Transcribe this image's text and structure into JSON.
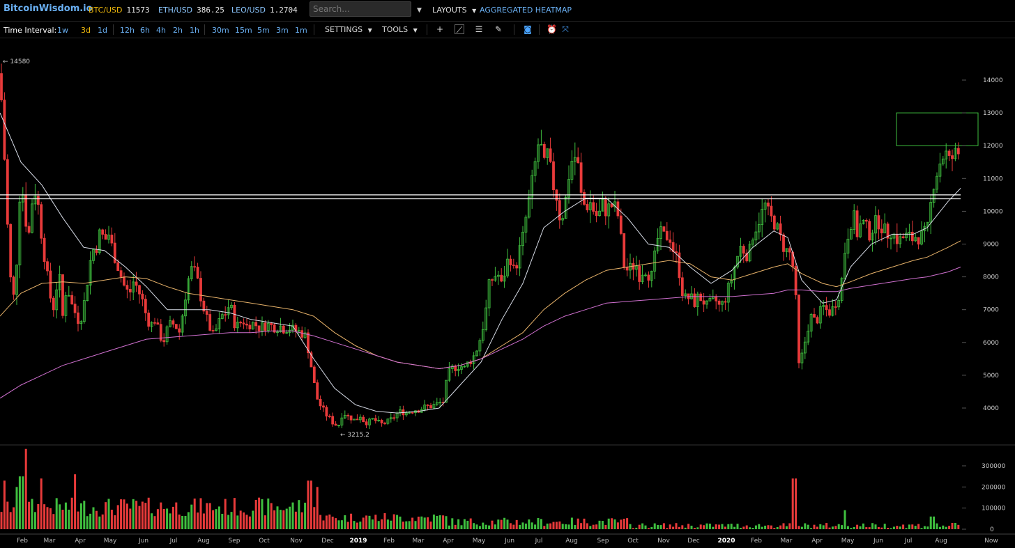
{
  "header": {
    "logo": "BitcoinWisdom.io",
    "pairs": [
      {
        "symbol": "BTC/USD",
        "price": "11573",
        "active": true
      },
      {
        "symbol": "ETH/USD",
        "price": "386.25",
        "active": false
      },
      {
        "symbol": "LEO/USD",
        "price": "1.2704",
        "active": false
      }
    ],
    "search_placeholder": "Search...",
    "layouts_label": "LAYOUTS",
    "heatmap_label": "AGGREGATED HEATMAP"
  },
  "toolbar": {
    "time_interval_label": "Time Interval:",
    "intervals": [
      "1w",
      "3d",
      "1d",
      "12h",
      "6h",
      "4h",
      "2h",
      "1h",
      "30m",
      "15m",
      "5m",
      "3m",
      "1m"
    ],
    "active_interval": "3d",
    "settings_label": "SETTINGS",
    "tools_label": "TOOLS",
    "icons": [
      "crosshair-icon",
      "line-tool-icon",
      "horizontal-lines-icon",
      "pen-icon",
      "camera-icon",
      "alarm-icon",
      "fullscreen-icon"
    ]
  },
  "colors": {
    "up": "#3fbf3f",
    "down": "#e83a3a",
    "ma_fast": "#d8dde8",
    "ma_mid": "#e8b36a",
    "ma_slow": "#d070d0",
    "accent": "#6ab0f3"
  },
  "chart_data": {
    "type": "candlestick",
    "price_axis": {
      "ticks": [
        "14000",
        "13000",
        "12000",
        "11000",
        "10000",
        "9000",
        "8000",
        "7000",
        "6000",
        "5000",
        "4000"
      ],
      "ylim": [
        3000,
        15000
      ]
    },
    "volume_axis": {
      "ticks": [
        "300000",
        "200000",
        "100000",
        "0"
      ],
      "ylim": [
        0,
        380000
      ]
    },
    "x_labels": [
      "Feb",
      "Mar",
      "Apr",
      "May",
      "Jun",
      "Jul",
      "Aug",
      "Sep",
      "Oct",
      "Nov",
      "Dec",
      "2019",
      "Feb",
      "Mar",
      "Apr",
      "May",
      "Jun",
      "Jul",
      "Aug",
      "Sep",
      "Oct",
      "Nov",
      "Dec",
      "2020",
      "Feb",
      "Mar",
      "Apr",
      "May",
      "Jun",
      "Jul",
      "Aug",
      "Now"
    ],
    "year_labels": [
      "2019",
      "2020"
    ],
    "annotations": [
      {
        "text": "← 14580",
        "price": 14580
      },
      {
        "text": "← 3215.2",
        "price": 3215.2
      }
    ],
    "horizontal_lines": [
      10500,
      10380
    ],
    "rectangle": {
      "price_top": 13000,
      "price_bottom": 12000
    },
    "price_path": [
      [
        0,
        14200
      ],
      [
        6,
        11800
      ],
      [
        12,
        9000
      ],
      [
        18,
        7000
      ],
      [
        24,
        8500
      ],
      [
        30,
        11200
      ],
      [
        36,
        9800
      ],
      [
        42,
        9300
      ],
      [
        48,
        10800
      ],
      [
        54,
        10300
      ],
      [
        60,
        9200
      ],
      [
        66,
        8300
      ],
      [
        72,
        7400
      ],
      [
        78,
        7000
      ],
      [
        84,
        8300
      ],
      [
        90,
        6800
      ],
      [
        96,
        7800
      ],
      [
        102,
        7200
      ],
      [
        108,
        6900
      ],
      [
        114,
        6600
      ],
      [
        120,
        7100
      ],
      [
        126,
        8000
      ],
      [
        132,
        8800
      ],
      [
        138,
        8900
      ],
      [
        144,
        9400
      ],
      [
        150,
        9100
      ],
      [
        156,
        9300
      ],
      [
        162,
        8800
      ],
      [
        168,
        8400
      ],
      [
        174,
        8000
      ],
      [
        180,
        7600
      ],
      [
        186,
        7500
      ],
      [
        192,
        7900
      ],
      [
        198,
        7600
      ],
      [
        204,
        7300
      ],
      [
        210,
        6800
      ],
      [
        216,
        6500
      ],
      [
        222,
        6700
      ],
      [
        228,
        6300
      ],
      [
        234,
        6000
      ],
      [
        240,
        6400
      ],
      [
        246,
        6600
      ],
      [
        252,
        6500
      ],
      [
        258,
        6300
      ],
      [
        264,
        7200
      ],
      [
        270,
        7900
      ],
      [
        276,
        8300
      ],
      [
        282,
        8000
      ],
      [
        288,
        7400
      ],
      [
        294,
        6900
      ],
      [
        300,
        6500
      ],
      [
        306,
        6200
      ],
      [
        312,
        6500
      ],
      [
        318,
        6800
      ],
      [
        324,
        6900
      ],
      [
        330,
        7200
      ],
      [
        336,
        6600
      ],
      [
        342,
        6500
      ],
      [
        348,
        6700
      ],
      [
        354,
        6500
      ],
      [
        360,
        6600
      ],
      [
        366,
        6550
      ],
      [
        372,
        6450
      ],
      [
        378,
        6500
      ],
      [
        384,
        6550
      ],
      [
        390,
        6500
      ],
      [
        396,
        6450
      ],
      [
        402,
        6500
      ],
      [
        408,
        6400
      ],
      [
        414,
        6450
      ],
      [
        420,
        6400
      ],
      [
        426,
        6350
      ],
      [
        432,
        6300
      ],
      [
        438,
        6200
      ],
      [
        444,
        5600
      ],
      [
        450,
        4800
      ],
      [
        456,
        4200
      ],
      [
        462,
        4000
      ],
      [
        468,
        3800
      ],
      [
        474,
        3650
      ],
      [
        480,
        3500
      ],
      [
        486,
        3500
      ],
      [
        492,
        3900
      ],
      [
        498,
        3750
      ],
      [
        504,
        3700
      ],
      [
        510,
        3600
      ],
      [
        516,
        3800
      ],
      [
        522,
        3600
      ],
      [
        528,
        3550
      ],
      [
        534,
        3650
      ],
      [
        540,
        3600
      ],
      [
        546,
        3500
      ],
      [
        552,
        3550
      ],
      [
        558,
        3600
      ],
      [
        564,
        3700
      ],
      [
        570,
        3850
      ],
      [
        576,
        3900
      ],
      [
        582,
        3850
      ],
      [
        588,
        3900
      ],
      [
        594,
        3950
      ],
      [
        600,
        3950
      ],
      [
        606,
        4000
      ],
      [
        612,
        4050
      ],
      [
        618,
        4050
      ],
      [
        624,
        4100
      ],
      [
        630,
        4150
      ],
      [
        636,
        4200
      ],
      [
        642,
        5000
      ],
      [
        648,
        5200
      ],
      [
        654,
        5250
      ],
      [
        660,
        5300
      ],
      [
        666,
        5200
      ],
      [
        672,
        5400
      ],
      [
        678,
        5500
      ],
      [
        684,
        5800
      ],
      [
        690,
        6200
      ],
      [
        696,
        6800
      ],
      [
        702,
        7800
      ],
      [
        708,
        8000
      ],
      [
        714,
        8100
      ],
      [
        720,
        7700
      ],
      [
        726,
        8400
      ],
      [
        732,
        8600
      ],
      [
        738,
        8100
      ],
      [
        744,
        8700
      ],
      [
        750,
        9200
      ],
      [
        756,
        10000
      ],
      [
        762,
        10700
      ],
      [
        768,
        11500
      ],
      [
        774,
        12300
      ],
      [
        780,
        11300
      ],
      [
        786,
        11800
      ],
      [
        792,
        10900
      ],
      [
        798,
        10500
      ],
      [
        804,
        9700
      ],
      [
        810,
        10100
      ],
      [
        816,
        11100
      ],
      [
        822,
        11700
      ],
      [
        828,
        11600
      ],
      [
        834,
        10400
      ],
      [
        840,
        10100
      ],
      [
        846,
        10300
      ],
      [
        852,
        10000
      ],
      [
        858,
        9800
      ],
      [
        864,
        10200
      ],
      [
        870,
        10000
      ],
      [
        876,
        10200
      ],
      [
        882,
        10100
      ],
      [
        888,
        9800
      ],
      [
        894,
        8400
      ],
      [
        900,
        8200
      ],
      [
        906,
        8300
      ],
      [
        912,
        8400
      ],
      [
        918,
        8000
      ],
      [
        924,
        8300
      ],
      [
        930,
        8100
      ],
      [
        936,
        8000
      ],
      [
        942,
        9100
      ],
      [
        948,
        9300
      ],
      [
        954,
        9200
      ],
      [
        960,
        9300
      ],
      [
        966,
        8800
      ],
      [
        972,
        8500
      ],
      [
        978,
        7600
      ],
      [
        984,
        7300
      ],
      [
        990,
        7400
      ],
      [
        996,
        7200
      ],
      [
        1002,
        7400
      ],
      [
        1008,
        7300
      ],
      [
        1014,
        7100
      ],
      [
        1020,
        7200
      ],
      [
        1026,
        7300
      ],
      [
        1032,
        7100
      ],
      [
        1038,
        7200
      ],
      [
        1044,
        7600
      ],
      [
        1050,
        8000
      ],
      [
        1056,
        8500
      ],
      [
        1062,
        8900
      ],
      [
        1068,
        8800
      ],
      [
        1074,
        8600
      ],
      [
        1080,
        9300
      ],
      [
        1086,
        9600
      ],
      [
        1092,
        9900
      ],
      [
        1098,
        10200
      ],
      [
        1104,
        9800
      ],
      [
        1110,
        9700
      ],
      [
        1116,
        9400
      ],
      [
        1122,
        9000
      ],
      [
        1128,
        8800
      ],
      [
        1134,
        8700
      ],
      [
        1140,
        8000
      ],
      [
        1146,
        5300
      ],
      [
        1152,
        5700
      ],
      [
        1158,
        6400
      ],
      [
        1164,
        6800
      ],
      [
        1170,
        6600
      ],
      [
        1176,
        6900
      ],
      [
        1182,
        7100
      ],
      [
        1188,
        6900
      ],
      [
        1194,
        7000
      ],
      [
        1200,
        7300
      ],
      [
        1206,
        7600
      ],
      [
        1212,
        8800
      ],
      [
        1218,
        9500
      ],
      [
        1224,
        9900
      ],
      [
        1230,
        9300
      ],
      [
        1236,
        9700
      ],
      [
        1242,
        9500
      ],
      [
        1248,
        9300
      ],
      [
        1254,
        9600
      ],
      [
        1260,
        9700
      ],
      [
        1266,
        9500
      ],
      [
        1272,
        9300
      ],
      [
        1278,
        9400
      ],
      [
        1284,
        9200
      ],
      [
        1290,
        9100
      ],
      [
        1296,
        9200
      ],
      [
        1302,
        9250
      ],
      [
        1308,
        9150
      ],
      [
        1314,
        9250
      ],
      [
        1320,
        9200
      ],
      [
        1326,
        9300
      ],
      [
        1332,
        9500
      ],
      [
        1338,
        10800
      ],
      [
        1344,
        11200
      ],
      [
        1350,
        11600
      ],
      [
        1356,
        11800
      ],
      [
        1362,
        11500
      ],
      [
        1368,
        11700
      ],
      [
        1374,
        11800
      ],
      [
        1378,
        11573
      ]
    ],
    "ma_fast_path": [
      [
        0,
        13000
      ],
      [
        30,
        11500
      ],
      [
        60,
        10800
      ],
      [
        90,
        9800
      ],
      [
        120,
        8900
      ],
      [
        150,
        8800
      ],
      [
        180,
        8300
      ],
      [
        210,
        7700
      ],
      [
        240,
        7000
      ],
      [
        270,
        7000
      ],
      [
        300,
        7000
      ],
      [
        330,
        6900
      ],
      [
        360,
        6700
      ],
      [
        390,
        6600
      ],
      [
        420,
        6500
      ],
      [
        450,
        5500
      ],
      [
        480,
        4600
      ],
      [
        510,
        4100
      ],
      [
        540,
        3900
      ],
      [
        570,
        3850
      ],
      [
        600,
        3900
      ],
      [
        630,
        4000
      ],
      [
        660,
        4700
      ],
      [
        690,
        5400
      ],
      [
        720,
        6700
      ],
      [
        750,
        7800
      ],
      [
        780,
        9500
      ],
      [
        810,
        10000
      ],
      [
        840,
        10400
      ],
      [
        870,
        10400
      ],
      [
        900,
        9800
      ],
      [
        930,
        9000
      ],
      [
        960,
        8900
      ],
      [
        990,
        8300
      ],
      [
        1020,
        7800
      ],
      [
        1050,
        8200
      ],
      [
        1080,
        8900
      ],
      [
        1110,
        9400
      ],
      [
        1130,
        9200
      ],
      [
        1150,
        7900
      ],
      [
        1180,
        7200
      ],
      [
        1200,
        7300
      ],
      [
        1220,
        8300
      ],
      [
        1250,
        9000
      ],
      [
        1280,
        9300
      ],
      [
        1310,
        9300
      ],
      [
        1330,
        9500
      ],
      [
        1360,
        10300
      ],
      [
        1378,
        10700
      ]
    ],
    "ma_mid_path": [
      [
        0,
        6800
      ],
      [
        30,
        7500
      ],
      [
        60,
        7800
      ],
      [
        90,
        7850
      ],
      [
        120,
        7800
      ],
      [
        150,
        7900
      ],
      [
        180,
        8000
      ],
      [
        210,
        7950
      ],
      [
        240,
        7700
      ],
      [
        270,
        7500
      ],
      [
        300,
        7400
      ],
      [
        330,
        7300
      ],
      [
        360,
        7200
      ],
      [
        390,
        7100
      ],
      [
        420,
        7000
      ],
      [
        450,
        6800
      ],
      [
        480,
        6300
      ],
      [
        510,
        5900
      ],
      [
        540,
        5600
      ],
      [
        570,
        5400
      ],
      [
        600,
        5300
      ],
      [
        630,
        5200
      ],
      [
        660,
        5300
      ],
      [
        690,
        5500
      ],
      [
        720,
        5900
      ],
      [
        750,
        6300
      ],
      [
        780,
        7000
      ],
      [
        810,
        7500
      ],
      [
        840,
        7900
      ],
      [
        870,
        8200
      ],
      [
        900,
        8300
      ],
      [
        930,
        8400
      ],
      [
        960,
        8500
      ],
      [
        990,
        8400
      ],
      [
        1020,
        8000
      ],
      [
        1050,
        7900
      ],
      [
        1080,
        8100
      ],
      [
        1110,
        8300
      ],
      [
        1130,
        8400
      ],
      [
        1150,
        8100
      ],
      [
        1180,
        7800
      ],
      [
        1200,
        7700
      ],
      [
        1220,
        7850
      ],
      [
        1250,
        8100
      ],
      [
        1280,
        8300
      ],
      [
        1310,
        8500
      ],
      [
        1330,
        8600
      ],
      [
        1360,
        8900
      ],
      [
        1378,
        9100
      ]
    ],
    "ma_slow_path": [
      [
        0,
        4300
      ],
      [
        30,
        4700
      ],
      [
        60,
        5000
      ],
      [
        90,
        5300
      ],
      [
        120,
        5500
      ],
      [
        150,
        5700
      ],
      [
        180,
        5900
      ],
      [
        210,
        6100
      ],
      [
        240,
        6150
      ],
      [
        270,
        6200
      ],
      [
        300,
        6250
      ],
      [
        330,
        6300
      ],
      [
        360,
        6300
      ],
      [
        390,
        6350
      ],
      [
        420,
        6350
      ],
      [
        450,
        6200
      ],
      [
        480,
        6000
      ],
      [
        510,
        5800
      ],
      [
        540,
        5600
      ],
      [
        570,
        5400
      ],
      [
        600,
        5300
      ],
      [
        630,
        5200
      ],
      [
        660,
        5300
      ],
      [
        690,
        5500
      ],
      [
        720,
        5800
      ],
      [
        750,
        6100
      ],
      [
        780,
        6500
      ],
      [
        810,
        6800
      ],
      [
        840,
        7000
      ],
      [
        870,
        7200
      ],
      [
        900,
        7250
      ],
      [
        930,
        7300
      ],
      [
        960,
        7350
      ],
      [
        990,
        7400
      ],
      [
        1020,
        7400
      ],
      [
        1050,
        7400
      ],
      [
        1080,
        7450
      ],
      [
        1110,
        7500
      ],
      [
        1130,
        7600
      ],
      [
        1150,
        7600
      ],
      [
        1180,
        7550
      ],
      [
        1200,
        7550
      ],
      [
        1220,
        7650
      ],
      [
        1250,
        7750
      ],
      [
        1280,
        7850
      ],
      [
        1310,
        7950
      ],
      [
        1330,
        8000
      ],
      [
        1360,
        8150
      ],
      [
        1378,
        8300
      ]
    ],
    "volume_spikes": [
      [
        6,
        230000
      ],
      [
        24,
        200000
      ],
      [
        30,
        250000
      ],
      [
        36,
        380000
      ],
      [
        60,
        240000
      ],
      [
        108,
        260000
      ],
      [
        444,
        230000
      ],
      [
        456,
        200000
      ],
      [
        1140,
        240000
      ],
      [
        1212,
        90000
      ],
      [
        1338,
        60000
      ]
    ]
  }
}
